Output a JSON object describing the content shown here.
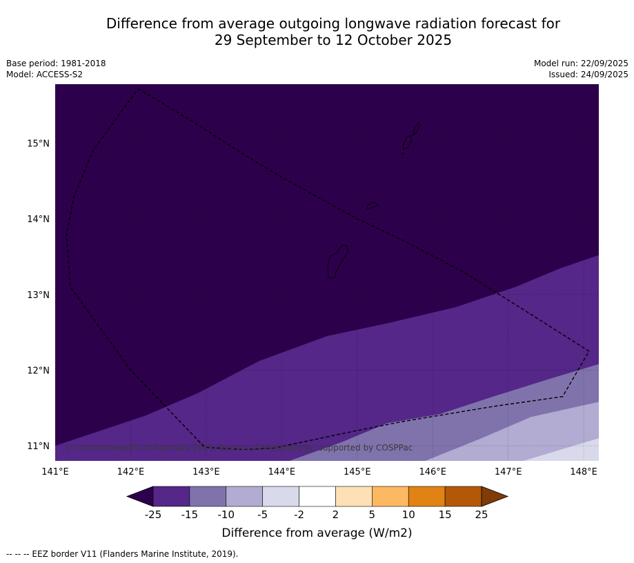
{
  "title": {
    "line1": "Difference from average outgoing longwave radiation forecast for",
    "line2": "29 September to 12 October 2025"
  },
  "meta": {
    "base_period": "Base period: 1981-2018",
    "model": "Model: ACCESS-S2",
    "model_run": "Model run: 22/09/2025",
    "issued": "Issued: 24/09/2025"
  },
  "map": {
    "lon_range": [
      141.0,
      148.2
    ],
    "lat_range": [
      10.8,
      15.78
    ],
    "lon_ticks": [
      {
        "value": 141,
        "label": "141°E"
      },
      {
        "value": 142,
        "label": "142°E"
      },
      {
        "value": 143,
        "label": "143°E"
      },
      {
        "value": 144,
        "label": "144°E"
      },
      {
        "value": 145,
        "label": "145°E"
      },
      {
        "value": 146,
        "label": "146°E"
      },
      {
        "value": 147,
        "label": "147°E"
      },
      {
        "value": 148,
        "label": "148°E"
      }
    ],
    "lat_ticks": [
      {
        "value": 15,
        "label": "15°N"
      },
      {
        "value": 14,
        "label": "14°N"
      },
      {
        "value": 13,
        "label": "13°N"
      },
      {
        "value": 12,
        "label": "12°N"
      },
      {
        "value": 11,
        "label": "11°N"
      }
    ],
    "copyright": "© Commonwealth of Australia 2025, Bureau of Meteorology, supported by COSPPac",
    "bands": [
      {
        "range": "< -25",
        "color": "#2d004b",
        "boundary": [
          [
            141.0,
            11.0
          ],
          [
            141.6,
            11.2
          ],
          [
            142.2,
            11.4
          ],
          [
            142.9,
            11.7
          ],
          [
            143.7,
            12.12
          ],
          [
            144.6,
            12.45
          ],
          [
            145.4,
            12.62
          ],
          [
            146.3,
            12.83
          ],
          [
            147.1,
            13.1
          ],
          [
            147.7,
            13.35
          ],
          [
            148.2,
            13.52
          ]
        ]
      },
      {
        "range": "-25 to -15",
        "color": "#542788",
        "boundary": [
          [
            144.1,
            10.8
          ],
          [
            144.8,
            11.05
          ],
          [
            145.4,
            11.3
          ],
          [
            146.1,
            11.42
          ],
          [
            146.8,
            11.65
          ],
          [
            147.6,
            11.9
          ],
          [
            148.2,
            12.08
          ]
        ]
      },
      {
        "range": "-15 to -10",
        "color": "#8073ac",
        "boundary": [
          [
            145.9,
            10.8
          ],
          [
            146.6,
            11.08
          ],
          [
            147.3,
            11.38
          ],
          [
            148.2,
            11.58
          ]
        ]
      },
      {
        "range": "-10 to -5",
        "color": "#b2abd2",
        "boundary": [
          [
            147.2,
            10.8
          ],
          [
            147.8,
            10.98
          ],
          [
            148.2,
            11.1
          ]
        ]
      },
      {
        "range": "-5 to -2",
        "color": "#d8daeb",
        "boundary": null
      }
    ],
    "eez_border": [
      [
        142.1,
        15.72
      ],
      [
        142.8,
        15.3
      ],
      [
        143.5,
        14.85
      ],
      [
        144.0,
        14.55
      ],
      [
        145.0,
        14.0
      ],
      [
        145.6,
        13.72
      ],
      [
        146.4,
        13.3
      ],
      [
        147.2,
        12.8
      ],
      [
        148.07,
        12.25
      ],
      [
        147.72,
        11.65
      ],
      [
        146.8,
        11.52
      ],
      [
        145.6,
        11.32
      ],
      [
        144.9,
        11.18
      ],
      [
        143.9,
        10.97
      ],
      [
        143.5,
        10.95
      ],
      [
        142.98,
        10.98
      ],
      [
        142.0,
        12.0
      ],
      [
        141.2,
        13.1
      ],
      [
        141.15,
        13.8
      ],
      [
        141.25,
        14.3
      ],
      [
        141.5,
        14.9
      ],
      [
        141.9,
        15.45
      ],
      [
        142.1,
        15.72
      ]
    ],
    "islands": [
      [
        [
          144.62,
          13.22
        ],
        [
          144.7,
          13.22
        ],
        [
          144.72,
          13.3
        ],
        [
          144.8,
          13.45
        ],
        [
          144.88,
          13.56
        ],
        [
          144.86,
          13.65
        ],
        [
          144.8,
          13.65
        ],
        [
          144.73,
          13.55
        ],
        [
          144.64,
          13.5
        ],
        [
          144.61,
          13.38
        ],
        [
          144.62,
          13.22
        ]
      ],
      [
        [
          145.13,
          14.13
        ],
        [
          145.2,
          14.15
        ],
        [
          145.28,
          14.18
        ],
        [
          145.22,
          14.22
        ],
        [
          145.14,
          14.18
        ],
        [
          145.13,
          14.13
        ]
      ],
      [
        [
          145.61,
          14.92
        ],
        [
          145.67,
          14.94
        ],
        [
          145.72,
          15.04
        ],
        [
          145.71,
          15.1
        ],
        [
          145.66,
          15.08
        ],
        [
          145.61,
          14.98
        ],
        [
          145.61,
          14.92
        ]
      ],
      [
        [
          145.74,
          15.1
        ],
        [
          145.79,
          15.15
        ],
        [
          145.83,
          15.25
        ],
        [
          145.81,
          15.27
        ],
        [
          145.76,
          15.2
        ],
        [
          145.74,
          15.1
        ]
      ],
      [
        [
          145.58,
          14.85
        ],
        [
          145.62,
          14.87
        ]
      ]
    ]
  },
  "colorbar": {
    "colors": [
      "#2d004b",
      "#542788",
      "#8073ac",
      "#b2abd2",
      "#d8daeb",
      "#ffffff",
      "#fee0b6",
      "#fdb863",
      "#e08214",
      "#b35806",
      "#7f3b08"
    ],
    "ticks": [
      "-25",
      "-15",
      "-10",
      "-5",
      "-2",
      "2",
      "5",
      "10",
      "15",
      "25"
    ],
    "label": "Difference from average (W/m2)"
  },
  "footer": "--  --  -- EEZ border V11 (Flanders Marine Institute, 2019)."
}
